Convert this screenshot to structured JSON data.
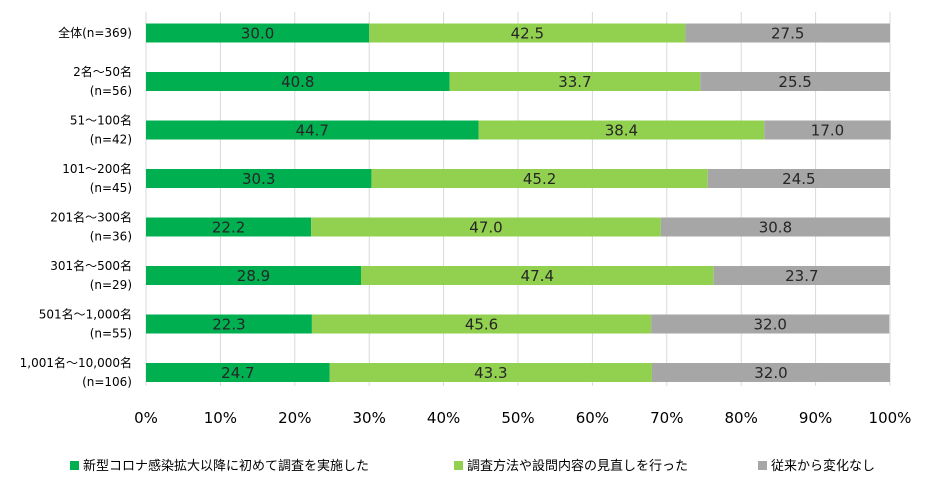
{
  "chart_data": {
    "type": "bar",
    "orientation": "horizontal",
    "stacked": true,
    "categories": [
      [
        "全体(n=369)"
      ],
      [
        "2名～50名",
        "(n=56)"
      ],
      [
        "51～100名",
        "(n=42)"
      ],
      [
        "101～200名",
        "(n=45)"
      ],
      [
        "201名～300名",
        "(n=36)"
      ],
      [
        "301名～500名",
        "(n=29)"
      ],
      [
        "501名～1,000名",
        "(n=55)"
      ],
      [
        "1,001名～10,000名",
        "(n=106)"
      ]
    ],
    "series": [
      {
        "name": "新型コロナ感染拡大以降に初めて調査を実施した",
        "color": "#00b050",
        "values": [
          30.0,
          40.8,
          44.7,
          30.3,
          22.2,
          28.9,
          22.3,
          24.7
        ],
        "labels": [
          "30.0",
          "40.8",
          "44.7",
          "30.3",
          "22.2",
          "28.9",
          "22.3",
          "24.7"
        ]
      },
      {
        "name": "調査方法や設問内容の見直しを行った",
        "color": "#92d050",
        "values": [
          42.5,
          33.7,
          38.4,
          45.2,
          47.0,
          47.4,
          45.6,
          43.3
        ],
        "labels": [
          "42.5",
          "33.7",
          "38.4",
          "45.2",
          "47.0",
          "47.4",
          "45.6",
          "43.3"
        ]
      },
      {
        "name": "従来から変化なし",
        "color": "#a6a6a6",
        "values": [
          27.5,
          25.5,
          17.0,
          24.5,
          30.8,
          23.7,
          32.0,
          32.0
        ],
        "labels": [
          "27.5",
          "25.5",
          "17.0",
          "24.5",
          "30.8",
          "23.7",
          "32.0",
          "32.0"
        ]
      }
    ],
    "xlim": [
      0,
      100
    ],
    "xticks": [
      "0%",
      "10%",
      "20%",
      "30%",
      "40%",
      "50%",
      "60%",
      "70%",
      "80%",
      "90%",
      "100%"
    ],
    "grid": true,
    "legend_position": "bottom",
    "title": "",
    "xlabel": "",
    "ylabel": ""
  }
}
